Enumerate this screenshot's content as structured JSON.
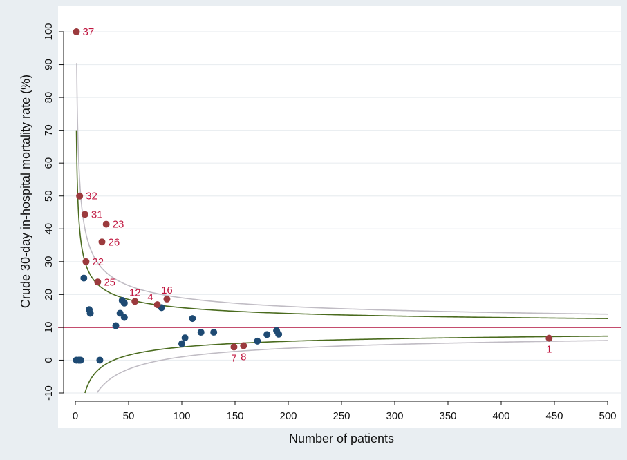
{
  "chart_data": {
    "type": "scatter",
    "title": "",
    "xlabel": "Number of patients",
    "ylabel": "Crude 30-day in-hospital mortality rate (%)",
    "xlim": [
      0,
      500
    ],
    "ylim": [
      -10,
      100
    ],
    "x_ticks": [
      "0",
      "50",
      "100",
      "150",
      "200",
      "250",
      "300",
      "350",
      "400",
      "450",
      "500"
    ],
    "y_ticks": [
      "-10",
      "0",
      "10",
      "20",
      "30",
      "40",
      "50",
      "60",
      "70",
      "80",
      "90",
      "100"
    ],
    "grid": true,
    "reference_line": {
      "y": 10,
      "color": "#b0123f"
    },
    "funnel_inner": {
      "color": "#4a6b1e",
      "level": 2
    },
    "funnel_outer": {
      "color": "#c0bcc4",
      "level": 3
    },
    "colors": {
      "highlighted": "#9b3a3d",
      "normal": "#1e4a73",
      "label": "#c0163f"
    },
    "highlighted_points": [
      {
        "label": "37",
        "x": 1,
        "y": 100,
        "pos": "right"
      },
      {
        "label": "32",
        "x": 4,
        "y": 50,
        "pos": "right"
      },
      {
        "label": "31",
        "x": 9,
        "y": 44.4,
        "pos": "right"
      },
      {
        "label": "23",
        "x": 29,
        "y": 41.4,
        "pos": "right"
      },
      {
        "label": "26",
        "x": 25,
        "y": 36,
        "pos": "right"
      },
      {
        "label": "22",
        "x": 10,
        "y": 30,
        "pos": "right"
      },
      {
        "label": "25",
        "x": 21,
        "y": 23.8,
        "pos": "right"
      },
      {
        "label": "12",
        "x": 56,
        "y": 17.9,
        "pos": "above"
      },
      {
        "label": "4",
        "x": 77,
        "y": 16.9,
        "pos": "aboveleft"
      },
      {
        "label": "16",
        "x": 86,
        "y": 18.6,
        "pos": "above"
      },
      {
        "label": "7",
        "x": 149,
        "y": 4,
        "pos": "below"
      },
      {
        "label": "8",
        "x": 158,
        "y": 4.4,
        "pos": "below"
      },
      {
        "label": "1",
        "x": 445,
        "y": 6.7,
        "pos": "below"
      }
    ],
    "other_points": [
      {
        "x": 1,
        "y": 0
      },
      {
        "x": 3,
        "y": 0
      },
      {
        "x": 4,
        "y": 0
      },
      {
        "x": 5,
        "y": 0
      },
      {
        "x": 23,
        "y": 0
      },
      {
        "x": 8,
        "y": 25
      },
      {
        "x": 13,
        "y": 15.4
      },
      {
        "x": 14,
        "y": 14.3
      },
      {
        "x": 38,
        "y": 10.5
      },
      {
        "x": 42,
        "y": 14.3
      },
      {
        "x": 44,
        "y": 18.2
      },
      {
        "x": 46,
        "y": 17.4
      },
      {
        "x": 46,
        "y": 13
      },
      {
        "x": 81,
        "y": 16
      },
      {
        "x": 100,
        "y": 5
      },
      {
        "x": 103,
        "y": 6.8
      },
      {
        "x": 110,
        "y": 12.7
      },
      {
        "x": 118,
        "y": 8.5
      },
      {
        "x": 130,
        "y": 8.5
      },
      {
        "x": 171,
        "y": 5.8
      },
      {
        "x": 180,
        "y": 7.8
      },
      {
        "x": 189,
        "y": 9
      },
      {
        "x": 191,
        "y": 7.9
      }
    ]
  }
}
